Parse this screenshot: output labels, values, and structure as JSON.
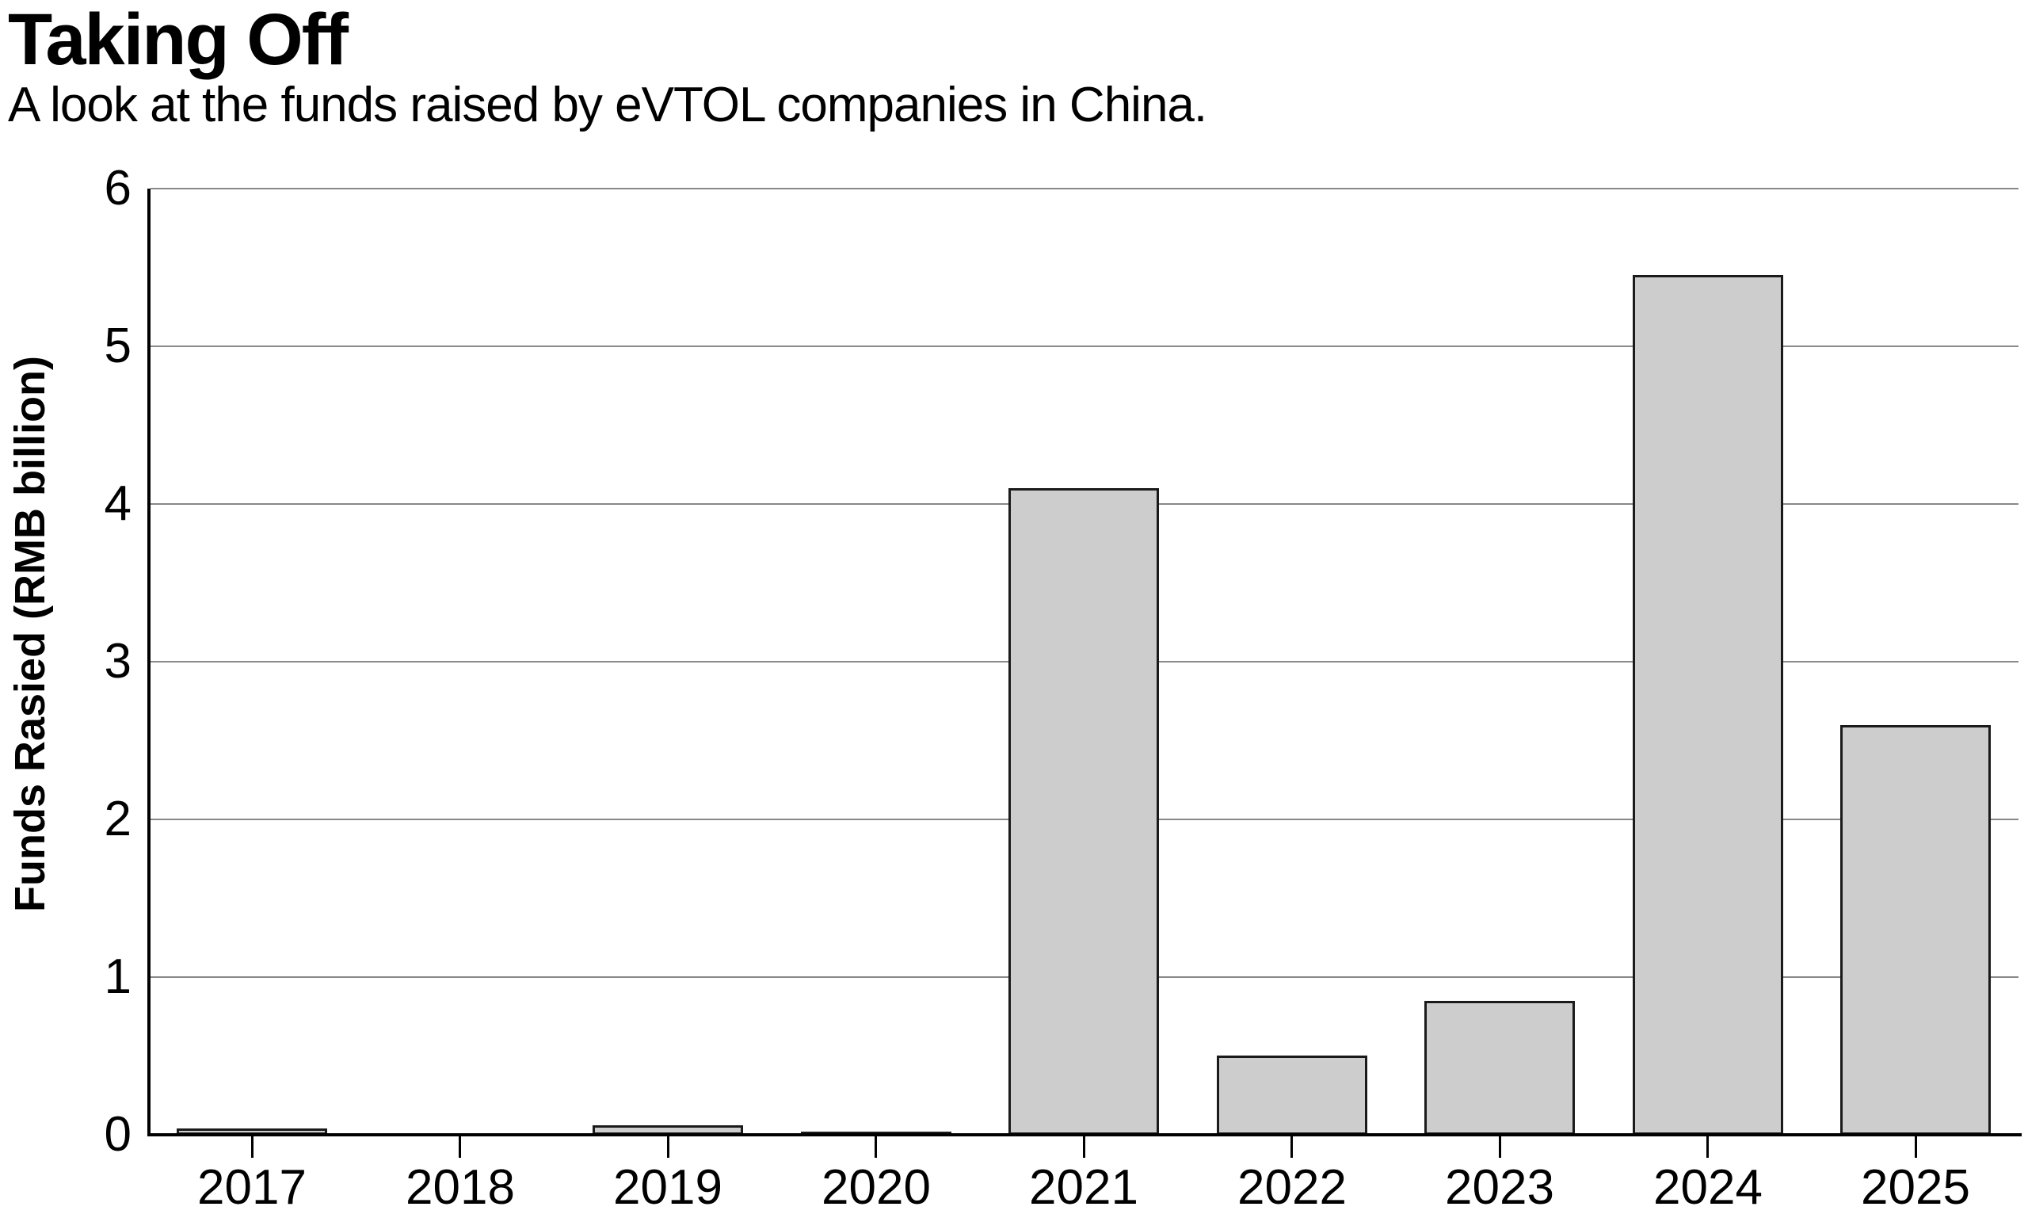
{
  "header": {
    "title": "Taking Off",
    "subtitle": "A look at the funds raised by eVTOL companies in China."
  },
  "chart_data": {
    "type": "bar",
    "title": "Taking Off",
    "subtitle": "A look at the funds raised by eVTOL companies in China.",
    "categories": [
      "2017",
      "2018",
      "2019",
      "2020",
      "2021",
      "2022",
      "2023",
      "2024",
      "2025"
    ],
    "values": [
      0.04,
      0,
      0.06,
      0.02,
      4.1,
      0.5,
      0.85,
      5.45,
      2.6
    ],
    "xlabel": "",
    "ylabel": "Funds Rasied (RMB billion)",
    "ylim": [
      0,
      6
    ],
    "yticks": [
      0,
      1,
      2,
      3,
      4,
      5,
      6
    ],
    "grid": "horizontal",
    "legend_position": "none",
    "colors": {
      "bar_fill": "#cdcdcd",
      "bar_border": "#1a1a1a",
      "gridline": "#888888",
      "axis": "#000000",
      "text": "#000000"
    }
  }
}
